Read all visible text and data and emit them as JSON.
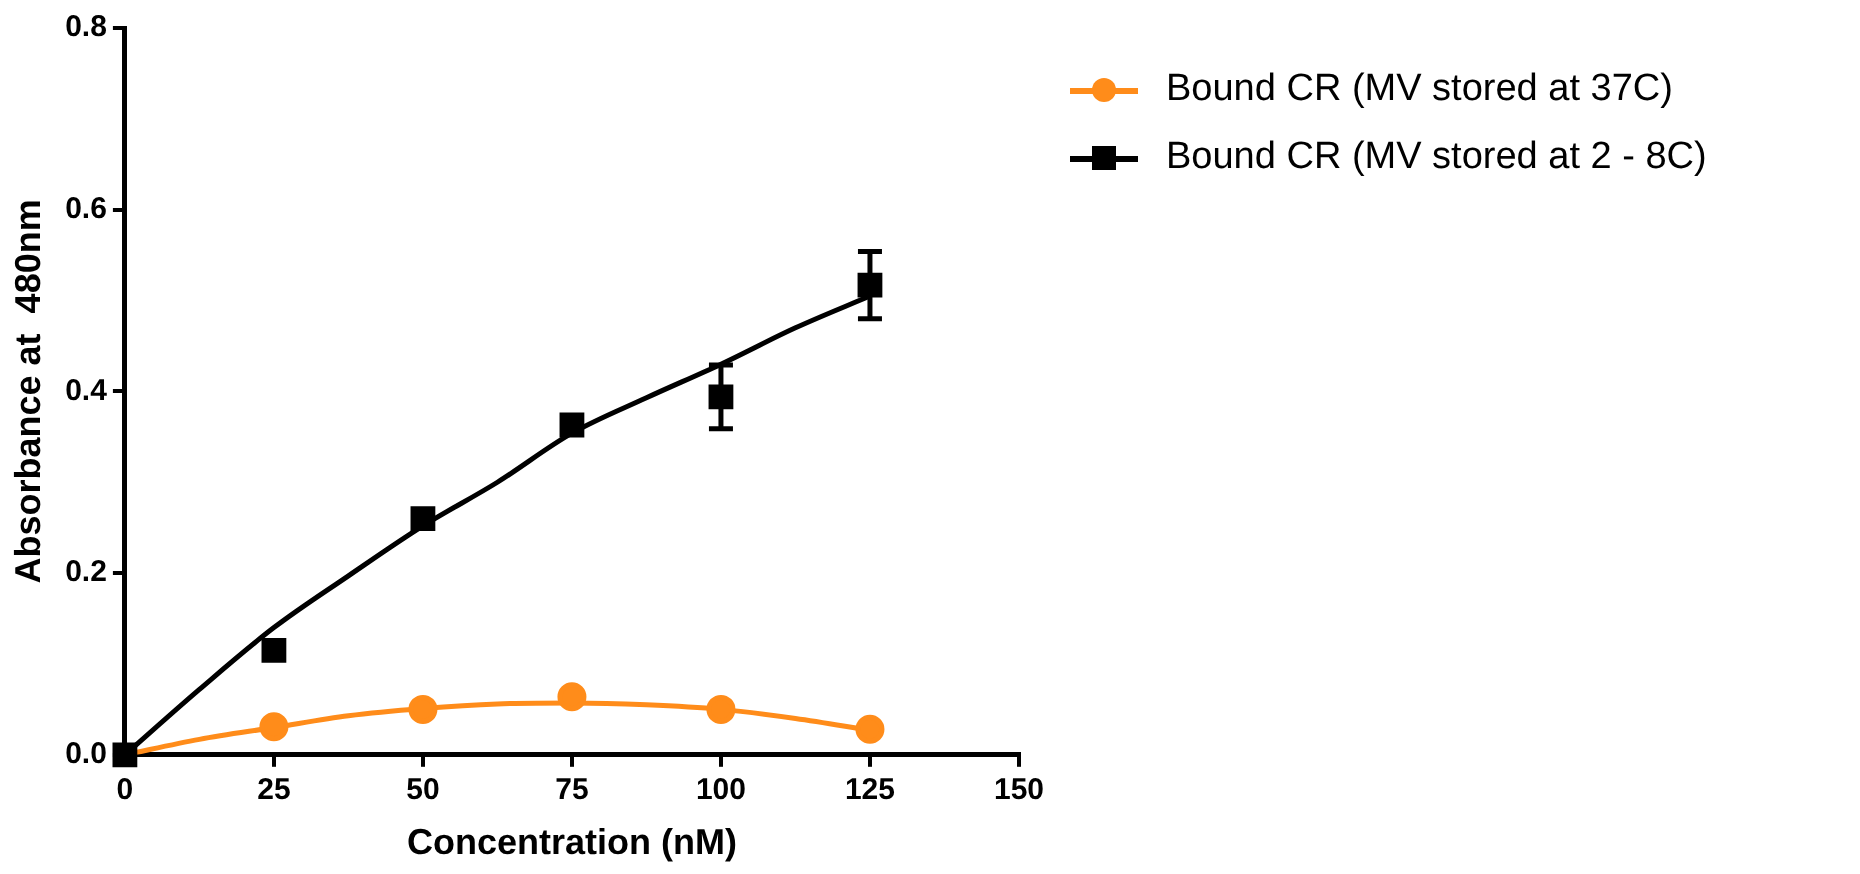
{
  "chart_data": {
    "type": "scatter",
    "xlabel": "Concentration (nM)",
    "ylabel": "Absorbance at  480nm",
    "xlim": [
      0,
      150
    ],
    "xticks": [
      0,
      25,
      50,
      75,
      100,
      125,
      150
    ],
    "ylim": [
      0,
      0.8
    ],
    "yticks": [
      {
        "value": 0,
        "label": "0.0"
      },
      {
        "value": 0.2,
        "label": "0.2"
      },
      {
        "value": 0.4,
        "label": "0.4"
      },
      {
        "value": 0.6,
        "label": "0.6"
      },
      {
        "value": 0.8,
        "label": "0.8"
      }
    ],
    "grid": false,
    "legend": "top right",
    "series": [
      {
        "name": "Bound CR (MV stored at 37C)",
        "marker": "circle",
        "color": "#ff8c1a",
        "x": [
          25,
          50,
          75,
          100,
          125
        ],
        "values": [
          0.031,
          0.05,
          0.064,
          0.05,
          0.028
        ]
      },
      {
        "name": "Bound CR (MV stored at 2 - 8C)",
        "marker": "square",
        "color": "#000000",
        "x": [
          0,
          25,
          50,
          75,
          100,
          125
        ],
        "values": [
          0,
          0.115,
          0.26,
          0.363,
          0.394,
          0.517
        ],
        "errors": [
          null,
          null,
          null,
          null,
          0.035,
          0.037
        ]
      },
      {
        "type": "line",
        "marker": "none",
        "color": "#ff8c1a",
        "x": [
          0,
          12.5,
          25,
          37.5,
          50,
          62.5,
          75,
          87.5,
          100,
          112.5,
          125
        ],
        "values": [
          0,
          0.017,
          0.03,
          0.043,
          0.051,
          0.056,
          0.057,
          0.055,
          0.05,
          0.04,
          0.027
        ]
      },
      {
        "type": "line",
        "marker": "none",
        "color": "#000000",
        "x": [
          0,
          12.5,
          25,
          37.5,
          50,
          62.5,
          75,
          87.5,
          100,
          112.5,
          125
        ],
        "values": [
          0,
          0.072,
          0.14,
          0.197,
          0.252,
          0.3,
          0.354,
          0.393,
          0.43,
          0.47,
          0.505
        ]
      }
    ]
  }
}
